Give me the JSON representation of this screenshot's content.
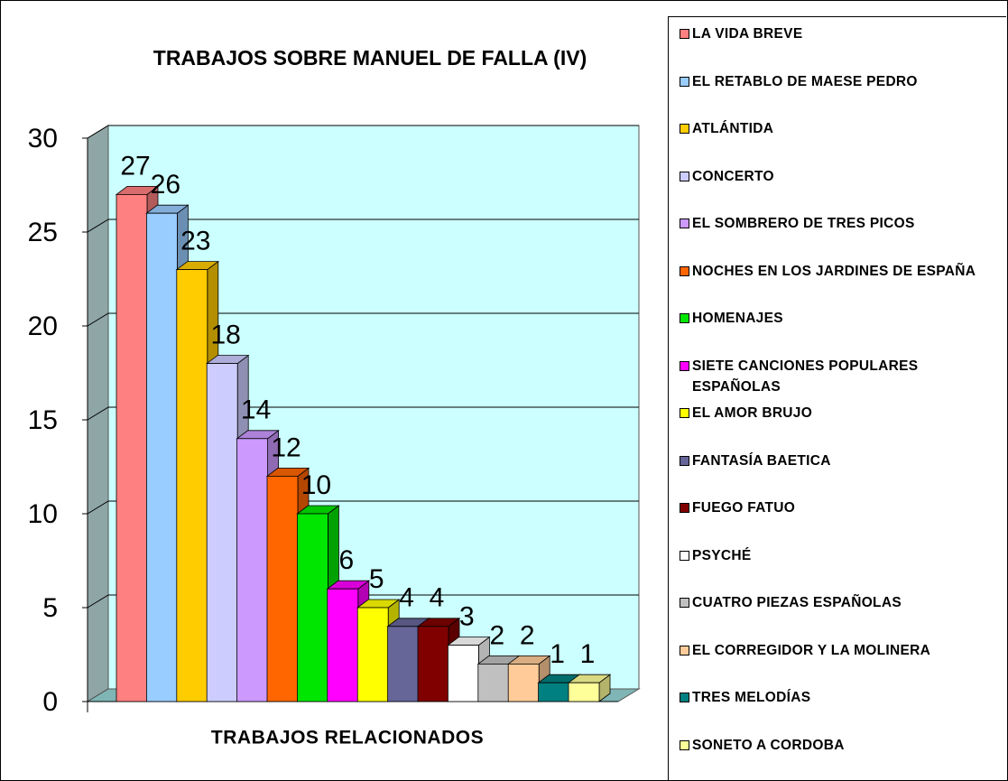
{
  "chart_data": {
    "type": "bar3d",
    "title": "TRABAJOS SOBRE MANUEL DE FALLA (IV)",
    "x_label": "TRABAJOS RELACIONADOS",
    "categories": [
      "LA VIDA BREVE",
      "EL RETABLO DE MAESE PEDRO",
      "ATLÁNTIDA",
      "CONCERTO",
      "EL SOMBRERO DE TRES PICOS",
      "NOCHES EN LOS JARDINES DE ESPAÑA",
      "HOMENAJES",
      "SIETE CANCIONES POPULARES ESPAÑOLAS",
      "EL AMOR BRUJO",
      "FANTASÍA BAETICA",
      "FUEGO FATUO",
      "PSYCHÉ",
      "CUATRO PIEZAS ESPAÑOLAS",
      "EL CORREGIDOR Y LA MOLINERA",
      "TRES MELODÍAS",
      "SONETO A CORDOBA"
    ],
    "values": [
      27,
      26,
      23,
      18,
      14,
      12,
      10,
      6,
      5,
      4,
      4,
      3,
      2,
      2,
      1,
      1
    ],
    "colors": [
      "#ff8080",
      "#99ccff",
      "#ffcc00",
      "#ccccff",
      "#cc99ff",
      "#ff6600",
      "#00e600",
      "#ff00ff",
      "#ffff00",
      "#666699",
      "#800000",
      "#ffffff",
      "#c0c0c0",
      "#ffcc99",
      "#008080",
      "#ffff99"
    ],
    "ylim": [
      0,
      30
    ],
    "yticks": [
      0,
      5,
      10,
      15,
      20,
      25,
      30
    ],
    "grid": true,
    "legend": "right"
  }
}
